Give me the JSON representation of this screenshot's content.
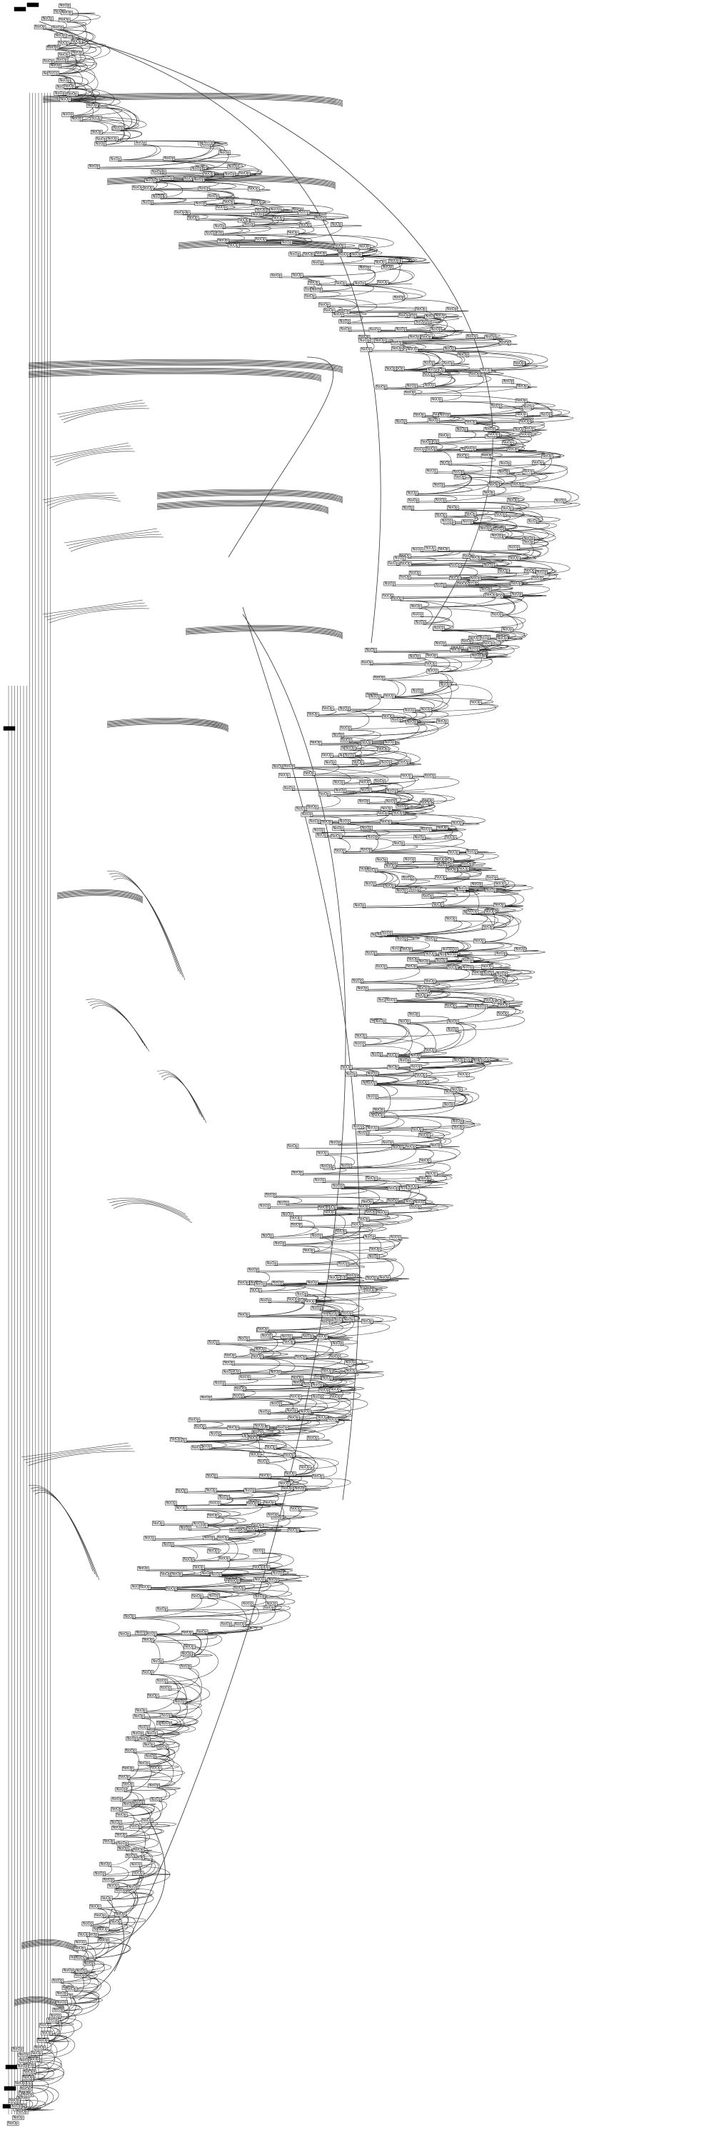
{
  "graph": {
    "node_label": "NoOp",
    "line_color": "#1a1a1a",
    "background": "#ffffff",
    "dark_node_color": "#000000",
    "node_count_approx": 900
  }
}
